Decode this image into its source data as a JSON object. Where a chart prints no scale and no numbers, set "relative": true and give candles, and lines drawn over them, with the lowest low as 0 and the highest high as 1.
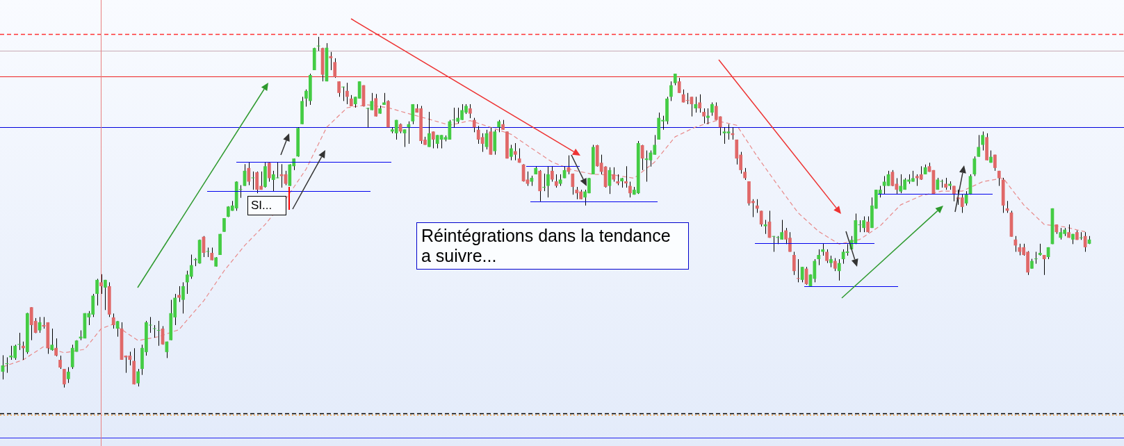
{
  "chart_data": {
    "type": "candlestick",
    "relative": true,
    "categories": [
      null,
      null,
      null,
      null,
      null,
      null,
      null,
      null,
      null,
      null,
      null,
      null,
      null,
      null,
      null,
      null,
      null,
      null,
      null,
      null,
      null,
      null,
      null,
      null,
      null,
      null,
      null,
      null,
      null,
      null,
      null,
      null,
      null,
      null,
      null,
      null,
      null,
      null,
      null,
      null,
      null,
      null,
      null,
      null,
      null,
      null,
      null,
      null,
      null,
      null,
      null,
      null,
      null,
      null,
      null,
      null,
      null,
      null,
      null,
      null,
      null,
      null,
      null,
      null,
      null,
      null,
      null,
      null,
      null,
      null,
      null,
      null,
      null,
      null,
      null,
      null,
      null,
      null,
      null,
      null,
      null,
      null,
      null,
      null,
      null,
      null,
      null,
      null,
      null,
      null,
      null,
      null,
      null,
      null,
      null,
      null,
      null,
      null,
      null,
      null,
      null,
      null,
      null,
      null,
      null,
      null,
      null,
      null,
      null,
      null,
      null,
      null,
      null,
      null,
      null,
      null,
      null,
      null,
      null,
      null,
      null,
      null,
      null,
      null,
      null,
      null,
      null,
      null,
      null,
      null,
      null,
      null,
      null,
      null,
      null,
      null,
      null,
      null,
      null,
      null,
      null,
      null,
      null,
      null,
      null,
      null,
      null,
      null,
      null,
      null,
      null,
      null,
      null,
      null,
      null,
      null,
      null,
      null,
      null,
      null,
      null,
      null,
      null,
      null,
      null,
      null,
      null,
      null,
      null,
      null,
      null,
      null,
      null,
      null,
      null,
      null,
      null,
      null,
      null,
      null,
      null,
      null,
      null,
      null,
      null,
      null,
      null,
      null,
      null,
      null,
      null,
      null,
      null,
      null,
      null,
      null,
      null,
      null,
      null,
      null,
      null,
      null,
      null,
      null,
      null,
      null,
      null,
      null,
      null,
      null,
      null,
      null,
      null,
      null,
      null,
      null,
      null,
      null,
      null,
      null,
      null,
      null,
      null,
      null,
      null,
      null,
      null,
      null,
      null,
      null,
      null,
      null,
      null,
      null,
      null,
      null,
      null,
      null,
      null,
      null,
      null,
      null,
      null,
      null,
      null,
      null,
      null,
      null,
      null,
      null,
      null,
      null,
      null,
      null,
      null,
      null,
      null,
      null,
      null,
      null,
      null,
      null,
      null,
      null,
      null,
      null
    ],
    "ohlc": [
      [
        0.045,
        0.092,
        0.023,
        0.063
      ],
      [
        0.067,
        0.086,
        0.042,
        0.068
      ],
      [
        0.086,
        0.119,
        0.079,
        0.091
      ],
      [
        0.084,
        0.122,
        0.079,
        0.119
      ],
      [
        0.122,
        0.156,
        0.107,
        0.123
      ],
      [
        0.119,
        0.131,
        0.079,
        0.112
      ],
      [
        0.101,
        0.213,
        0.096,
        0.212
      ],
      [
        0.229,
        0.229,
        0.135,
        0.178
      ],
      [
        0.19,
        0.198,
        0.155,
        0.156
      ],
      [
        0.163,
        0.201,
        0.156,
        0.186
      ],
      [
        0.178,
        0.201,
        0.168,
        0.174
      ],
      [
        0.186,
        0.186,
        0.096,
        0.112
      ],
      [
        0.107,
        0.168,
        0.105,
        0.122
      ],
      [
        0.113,
        0.14,
        0.089,
        0.091
      ],
      [
        0.079,
        0.091,
        0.053,
        0.057
      ],
      [
        0.053,
        0.053,
        0,
        0.009
      ],
      [
        0.024,
        0.058,
        0.013,
        0.045
      ],
      [
        0.058,
        0.122,
        0.053,
        0.113
      ],
      [
        0.102,
        0.135,
        0.102,
        0.134
      ],
      [
        0.14,
        0.163,
        0.135,
        0.145
      ],
      [
        0.14,
        0.212,
        0.14,
        0.212
      ],
      [
        0.2,
        0.218,
        0.178,
        0.212
      ],
      [
        0.208,
        0.267,
        0.201,
        0.262
      ],
      [
        0.267,
        0.31,
        0.234,
        0.307
      ],
      [
        0.3,
        0.323,
        0.267,
        0.289
      ],
      [
        0.285,
        0.307,
        0.221,
        0.307
      ],
      [
        0.289,
        0.3,
        0.201,
        0.208
      ],
      [
        0.2,
        0.211,
        0.168,
        0.178
      ],
      [
        0.168,
        0.19,
        0.145,
        0.189
      ],
      [
        0.168,
        0.186,
        0.079,
        0.079
      ],
      [
        0.091,
        0.091,
        0.042,
        0.086
      ],
      [
        0.091,
        0.102,
        0.063,
        0.079
      ],
      [
        0.076,
        0.112,
        0.009,
        0.009
      ],
      [
        0.012,
        0.053,
        0.003,
        0.046
      ],
      [
        0.053,
        0.122,
        0.036,
        0.113
      ],
      [
        0.101,
        0.19,
        0.091,
        0.186
      ],
      [
        0.177,
        0.201,
        0.156,
        0.179
      ],
      [
        0.167,
        0.178,
        0.142,
        0.168
      ],
      [
        0.162,
        0.19,
        0.119,
        0.163
      ],
      [
        0.168,
        0.175,
        0.122,
        0.123
      ],
      [
        0.101,
        0.131,
        0.084,
        0.131
      ],
      [
        0.135,
        0.25,
        0.135,
        0.212
      ],
      [
        0.2,
        0.267,
        0.178,
        0.256
      ],
      [
        0.264,
        0.289,
        0.244,
        0.256
      ],
      [
        0.25,
        0.3,
        0.211,
        0.289
      ],
      [
        0.3,
        0.333,
        0.267,
        0.322
      ],
      [
        0.316,
        0.379,
        0.31,
        0.349
      ],
      [
        0.363,
        0.369,
        0.346,
        0.366
      ],
      [
        0.354,
        0.422,
        0.353,
        0.421
      ],
      [
        0.43,
        0.432,
        0.372,
        0.384
      ],
      [
        0.387,
        0.399,
        0.372,
        0.388
      ],
      [
        0.384,
        0.399,
        0.363,
        0.363
      ],
      [
        0.345,
        0.372,
        0.345,
        0.371
      ],
      [
        0.378,
        0.438,
        0.378,
        0.438
      ],
      [
        0.444,
        0.483,
        0.444,
        0.483
      ],
      [
        0.487,
        0.517,
        0.486,
        0.516
      ],
      [
        0.504,
        0.532,
        0.504,
        0.519
      ],
      [
        0.511,
        0.588,
        0.504,
        0.587
      ],
      [
        0.564,
        0.577,
        0.541,
        0.566
      ],
      [
        0.575,
        0.637,
        0.575,
        0.618
      ],
      [
        0.626,
        0.643,
        0.577,
        0.587
      ],
      [
        0.597,
        0.616,
        0.564,
        0.598
      ],
      [
        0.614,
        0.616,
        0.554,
        0.564
      ],
      [
        0.575,
        0.616,
        0.564,
        0.564
      ],
      [
        0.572,
        0.643,
        0.57,
        0.631
      ],
      [
        0.641,
        0.643,
        0.587,
        0.597
      ],
      [
        0.592,
        0.618,
        0.56,
        0.608
      ],
      [
        0.597,
        0.643,
        0.597,
        0.598
      ],
      [
        0.608,
        0.637,
        0.57,
        0.603
      ],
      [
        0.608,
        0.618,
        0.577,
        0.581
      ],
      [
        0.575,
        0.637,
        0.575,
        0.636
      ],
      [
        0.631,
        0.653,
        0.62,
        0.653
      ],
      [
        0.659,
        0.742,
        0.658,
        0.74
      ],
      [
        0.751,
        0.829,
        0.751,
        0.817
      ],
      [
        0.824,
        0.85,
        0.801,
        0.846
      ],
      [
        0.817,
        0.895,
        0.806,
        0.891
      ],
      [
        0.905,
        0.969,
        0.905,
        0.968
      ],
      [
        0.973,
        1,
        0.96,
        0.974
      ],
      [
        0.968,
        0.969,
        0.873,
        0.892
      ],
      [
        0.873,
        0.982,
        0.873,
        0.969
      ],
      [
        0.945,
        0.957,
        0.905,
        0.939
      ],
      [
        0.928,
        0.939,
        0.883,
        0.885
      ],
      [
        0.873,
        0.873,
        0.829,
        0.84
      ],
      [
        0.856,
        0.858,
        0.817,
        0.857
      ],
      [
        0.846,
        0.869,
        0.808,
        0.829
      ],
      [
        0.824,
        0.834,
        0.802,
        0.802
      ],
      [
        0.808,
        0.829,
        0.798,
        0.829
      ],
      [
        0.824,
        0.873,
        0.824,
        0.873
      ],
      [
        0.862,
        0.862,
        0.801,
        0.802
      ],
      [
        0.795,
        0.798,
        0.742,
        0.796
      ],
      [
        0.791,
        0.84,
        0.791,
        0.817
      ],
      [
        0.825,
        0.837,
        0.773,
        0.773
      ],
      [
        0.781,
        0.804,
        0.781,
        0.796
      ],
      [
        0.806,
        0.84,
        0.806,
        0.813
      ],
      [
        0.817,
        0.819,
        0.742,
        0.742
      ],
      [
        0.73,
        0.742,
        0.725,
        0.736
      ],
      [
        0.725,
        0.763,
        0.707,
        0.763
      ],
      [
        0.751,
        0.753,
        0.725,
        0.73
      ],
      [
        0.725,
        0.736,
        0.686,
        0.736
      ],
      [
        0.742,
        0.759,
        0.695,
        0.751
      ],
      [
        0.759,
        0.808,
        0.751,
        0.808
      ],
      [
        0.796,
        0.808,
        0.784,
        0.784
      ],
      [
        0.796,
        0.803,
        0.695,
        0.703
      ],
      [
        0.707,
        0.715,
        0.692,
        0.692
      ],
      [
        0.686,
        0.786,
        0.686,
        0.725
      ],
      [
        0.73,
        0.73,
        0.682,
        0.707
      ],
      [
        0.695,
        0.72,
        0.682,
        0.72
      ],
      [
        0.707,
        0.72,
        0.682,
        0.72
      ],
      [
        0.707,
        0.719,
        0.702,
        0.714
      ],
      [
        0.707,
        0.763,
        0.707,
        0.759
      ],
      [
        0.762,
        0.798,
        0.742,
        0.763
      ],
      [
        0.758,
        0.798,
        0.753,
        0.769
      ],
      [
        0.763,
        0.808,
        0.763,
        0.791
      ],
      [
        0.784,
        0.808,
        0.78,
        0.803
      ],
      [
        0.796,
        0.808,
        0.768,
        0.781
      ],
      [
        0.763,
        0.769,
        0.728,
        0.742
      ],
      [
        0.735,
        0.746,
        0.695,
        0.707
      ],
      [
        0.714,
        0.725,
        0.672,
        0.695
      ],
      [
        0.686,
        0.735,
        0.679,
        0.725
      ],
      [
        0.73,
        0.742,
        0.664,
        0.664
      ],
      [
        0.674,
        0.735,
        0.664,
        0.73
      ],
      [
        0.742,
        0.763,
        0.728,
        0.759
      ],
      [
        0.751,
        0.763,
        0.735,
        0.735
      ],
      [
        0.73,
        0.73,
        0.653,
        0.653
      ],
      [
        0.658,
        0.692,
        0.648,
        0.682
      ],
      [
        0.674,
        0.697,
        0.648,
        0.664
      ],
      [
        0.653,
        0.682,
        0.641,
        0.641
      ],
      [
        0.636,
        0.637,
        0.587,
        0.588
      ],
      [
        0.593,
        0.616,
        0.575,
        0.581
      ],
      [
        0.587,
        0.604,
        0.575,
        0.598
      ],
      [
        0.608,
        0.631,
        0.608,
        0.626
      ],
      [
        0.618,
        0.62,
        0.531,
        0.56
      ],
      [
        0.57,
        0.61,
        0.56,
        0.572
      ],
      [
        0.575,
        0.63,
        0.542,
        0.608
      ],
      [
        0.618,
        0.63,
        0.587,
        0.593
      ],
      [
        0.588,
        0.608,
        0.57,
        0.575
      ],
      [
        0.581,
        0.608,
        0.575,
        0.593
      ],
      [
        0.597,
        0.631,
        0.597,
        0.62
      ],
      [
        0.628,
        0.662,
        0.608,
        0.615
      ],
      [
        0.61,
        0.61,
        0.55,
        0.572
      ],
      [
        0.564,
        0.572,
        0.537,
        0.554
      ],
      [
        0.559,
        0.564,
        0.537,
        0.537
      ],
      [
        0.542,
        0.564,
        0.519,
        0.559
      ],
      [
        0.554,
        0.598,
        0.554,
        0.597
      ],
      [
        0.608,
        0.692,
        0.608,
        0.686
      ],
      [
        0.691,
        0.692,
        0.63,
        0.631
      ],
      [
        0.641,
        0.664,
        0.608,
        0.615
      ],
      [
        0.63,
        0.631,
        0.57,
        0.572
      ],
      [
        0.575,
        0.628,
        0.552,
        0.62
      ],
      [
        0.608,
        0.628,
        0.587,
        0.593
      ],
      [
        0.588,
        0.608,
        0.577,
        0.582
      ],
      [
        0.588,
        0.598,
        0.57,
        0.597
      ],
      [
        0.588,
        0.631,
        0.57,
        0.582
      ],
      [
        0.575,
        0.587,
        0.542,
        0.554
      ],
      [
        0.55,
        0.572,
        0.55,
        0.564
      ],
      [
        0.554,
        0.703,
        0.552,
        0.697
      ],
      [
        0.691,
        0.692,
        0.62,
        0.653
      ],
      [
        0.649,
        0.676,
        0.587,
        0.653
      ],
      [
        0.648,
        0.676,
        0.63,
        0.67
      ],
      [
        0.664,
        0.72,
        0.664,
        0.692
      ],
      [
        0.707,
        0.784,
        0.707,
        0.769
      ],
      [
        0.759,
        0.775,
        0.735,
        0.763
      ],
      [
        0.759,
        0.829,
        0.751,
        0.824
      ],
      [
        0.829,
        0.873,
        0.817,
        0.862
      ],
      [
        0.868,
        0.895,
        0.862,
        0.895
      ],
      [
        0.873,
        0.883,
        0.84,
        0.84
      ],
      [
        0.836,
        0.85,
        0.813,
        0.813
      ],
      [
        0.819,
        0.84,
        0.808,
        0.818
      ],
      [
        0.829,
        0.829,
        0.773,
        0.808
      ],
      [
        0.796,
        0.829,
        0.784,
        0.808
      ],
      [
        0.813,
        0.836,
        0.784,
        0.796
      ],
      [
        0.786,
        0.796,
        0.753,
        0.773
      ],
      [
        0.769,
        0.796,
        0.751,
        0.775
      ],
      [
        0.784,
        0.813,
        0.775,
        0.808
      ],
      [
        0.803,
        0.813,
        0.763,
        0.763
      ],
      [
        0.773,
        0.773,
        0.719,
        0.742
      ],
      [
        0.725,
        0.742,
        0.695,
        0.73
      ],
      [
        0.725,
        0.751,
        0.707,
        0.73
      ],
      [
        0.725,
        0.742,
        0.707,
        0.72
      ],
      [
        0.707,
        0.707,
        0.636,
        0.653
      ],
      [
        0.664,
        0.672,
        0.61,
        0.62
      ],
      [
        0.615,
        0.626,
        0.592,
        0.597
      ],
      [
        0.588,
        0.588,
        0.519,
        0.525
      ],
      [
        0.532,
        0.537,
        0.486,
        0.526
      ],
      [
        0.519,
        0.537,
        0.498,
        0.51
      ],
      [
        0.504,
        0.504,
        0.459,
        0.465
      ],
      [
        0.46,
        0.478,
        0.438,
        0.465
      ],
      [
        0.473,
        0.504,
        0.427,
        0.427
      ],
      [
        0.43,
        0.432,
        0.387,
        0.432
      ],
      [
        0.427,
        0.432,
        0.409,
        0.428
      ],
      [
        0.422,
        0.478,
        0.422,
        0.443
      ],
      [
        0.448,
        0.455,
        0.409,
        0.422
      ],
      [
        0.427,
        0.443,
        0.387,
        0.387
      ],
      [
        0.378,
        0.387,
        0.321,
        0.332
      ],
      [
        0.311,
        0.366,
        0.3,
        0.31
      ],
      [
        0.307,
        0.344,
        0.3,
        0.344
      ],
      [
        0.339,
        0.344,
        0.293,
        0.295
      ],
      [
        0.289,
        0.323,
        0.289,
        0.322
      ],
      [
        0.31,
        0.366,
        0.3,
        0.361
      ],
      [
        0.366,
        0.394,
        0.349,
        0.378
      ],
      [
        0.387,
        0.41,
        0.376,
        0.394
      ],
      [
        0.387,
        0.394,
        0.355,
        0.361
      ],
      [
        0.355,
        0.376,
        0.343,
        0.366
      ],
      [
        0.361,
        0.369,
        0.332,
        0.339
      ],
      [
        0.332,
        0.366,
        0.305,
        0.355
      ],
      [
        0.366,
        0.394,
        0.353,
        0.387
      ],
      [
        0.384,
        0.409,
        0.376,
        0.388
      ],
      [
        0.394,
        0.432,
        0.392,
        0.421
      ],
      [
        0.41,
        0.496,
        0.409,
        0.477
      ],
      [
        0.463,
        0.477,
        0.443,
        0.465
      ],
      [
        0.455,
        0.488,
        0.443,
        0.477
      ],
      [
        0.473,
        0.488,
        0.442,
        0.443
      ],
      [
        0.455,
        0.542,
        0.455,
        0.519
      ],
      [
        0.51,
        0.564,
        0.51,
        0.564
      ],
      [
        0.552,
        0.575,
        0.542,
        0.564
      ],
      [
        0.575,
        0.603,
        0.552,
        0.587
      ],
      [
        0.575,
        0.618,
        0.575,
        0.608
      ],
      [
        0.615,
        0.62,
        0.574,
        0.575
      ],
      [
        0.581,
        0.597,
        0.552,
        0.564
      ],
      [
        0.559,
        0.608,
        0.554,
        0.575
      ],
      [
        0.564,
        0.597,
        0.564,
        0.593
      ],
      [
        0.587,
        0.608,
        0.581,
        0.593
      ],
      [
        0.587,
        0.618,
        0.587,
        0.597
      ],
      [
        0.603,
        0.608,
        0.575,
        0.597
      ],
      [
        0.608,
        0.631,
        0.592,
        0.593
      ],
      [
        0.608,
        0.636,
        0.608,
        0.628
      ],
      [
        0.631,
        0.641,
        0.615,
        0.615
      ],
      [
        0.62,
        0.62,
        0.552,
        0.552
      ],
      [
        0.564,
        0.598,
        0.564,
        0.593
      ],
      [
        0.587,
        0.593,
        0.57,
        0.588
      ],
      [
        0.581,
        0.598,
        0.564,
        0.57
      ],
      [
        0.575,
        0.588,
        0.564,
        0.581
      ],
      [
        0.575,
        0.575,
        0.531,
        0.552
      ],
      [
        0.542,
        0.564,
        0.521,
        0.537
      ],
      [
        0.542,
        0.552,
        0.498,
        0.515
      ],
      [
        0.525,
        0.56,
        0.519,
        0.55
      ],
      [
        0.552,
        0.608,
        0.55,
        0.603
      ],
      [
        0.608,
        0.659,
        0.603,
        0.653
      ],
      [
        0.658,
        0.72,
        0.658,
        0.686
      ],
      [
        0.692,
        0.73,
        0.676,
        0.72
      ],
      [
        0.714,
        0.725,
        0.648,
        0.648
      ],
      [
        0.641,
        0.676,
        0.641,
        0.658
      ],
      [
        0.664,
        0.664,
        0.618,
        0.626
      ],
      [
        0.618,
        0.618,
        0.575,
        0.597
      ],
      [
        0.593,
        0.598,
        0.498,
        0.519
      ],
      [
        0.511,
        0.532,
        0.498,
        0.504
      ],
      [
        0.499,
        0.504,
        0.43,
        0.43
      ],
      [
        0.422,
        0.432,
        0.387,
        0.405
      ],
      [
        0.4,
        0.41,
        0.377,
        0.387
      ],
      [
        0.4,
        0.41,
        0.376,
        0.378
      ],
      [
        0.387,
        0.389,
        0.321,
        0.328
      ],
      [
        0.339,
        0.367,
        0.339,
        0.361
      ],
      [
        0.366,
        0.387,
        0.353,
        0.367
      ],
      [
        0.378,
        0.41,
        0.376,
        0.384
      ],
      [
        0.378,
        0.378,
        0.321,
        0.366
      ],
      [
        0.372,
        0.4,
        0.366,
        0.4
      ],
      [
        0.409,
        0.511,
        0.409,
        0.511
      ],
      [
        0.465,
        0.465,
        0.438,
        0.443
      ],
      [
        0.427,
        0.455,
        0.422,
        0.443
      ],
      [
        0.438,
        0.455,
        0.432,
        0.45
      ],
      [
        0.443,
        0.465,
        0.427,
        0.427
      ],
      [
        0.422,
        0.438,
        0.409,
        0.438
      ],
      [
        0.443,
        0.448,
        0.421,
        0.421
      ],
      [
        0.426,
        0.443,
        0.421,
        0.427
      ],
      [
        0.432,
        0.443,
        0.387,
        0.4
      ],
      [
        0.41,
        0.432,
        0.409,
        0.422
      ]
    ],
    "colors": [
      "#44cc44",
      "#44cc44",
      "#44cc44",
      "#44cc44",
      "#44cc44",
      "#e06868",
      "#44cc44",
      "#e06868",
      "#e06868",
      "#44cc44",
      "#e06868",
      "#e06868",
      "#44cc44",
      "#e06868",
      "#e06868",
      "#e06868",
      "#44cc44",
      "#44cc44",
      "#44cc44",
      "#44cc44",
      "#44cc44",
      "#44cc44",
      "#44cc44",
      "#44cc44",
      "#e06868",
      "#44cc44",
      "#e06868",
      "#e06868",
      "#44cc44",
      "#e06868",
      "#e06868",
      "#e06868",
      "#e06868",
      "#44cc44",
      "#44cc44",
      "#44cc44",
      "#44cc44",
      "#44cc44",
      "#44cc44",
      "#e06868",
      "#44cc44",
      "#44cc44",
      "#44cc44",
      "#e06868",
      "#44cc44",
      "#44cc44",
      "#44cc44",
      "#44cc44",
      "#44cc44",
      "#e06868",
      "#44cc44",
      "#e06868",
      "#44cc44",
      "#44cc44",
      "#44cc44",
      "#44cc44",
      "#44cc44",
      "#44cc44",
      "#44cc44",
      "#44cc44",
      "#e06868",
      "#44cc44",
      "#e06868",
      "#e06868",
      "#44cc44",
      "#e06868",
      "#44cc44",
      "#44cc44",
      "#e06868",
      "#e06868",
      "#44cc44",
      "#44cc44",
      "#44cc44",
      "#44cc44",
      "#44cc44",
      "#44cc44",
      "#44cc44",
      "#44cc44",
      "#e06868",
      "#44cc44",
      "#e06868",
      "#e06868",
      "#e06868",
      "#44cc44",
      "#e06868",
      "#e06868",
      "#44cc44",
      "#44cc44",
      "#e06868",
      "#44cc44",
      "#44cc44",
      "#e06868",
      "#44cc44",
      "#44cc44",
      "#e06868",
      "#44cc44",
      "#44cc44",
      "#e06868",
      "#44cc44",
      "#44cc44",
      "#44cc44",
      "#e06868",
      "#e06868",
      "#e06868",
      "#44cc44",
      "#e06868",
      "#44cc44",
      "#44cc44",
      "#44cc44",
      "#44cc44",
      "#44cc44",
      "#44cc44",
      "#44cc44",
      "#44cc44",
      "#e06868",
      "#e06868",
      "#e06868",
      "#e06868",
      "#44cc44",
      "#e06868",
      "#44cc44",
      "#44cc44",
      "#e06868",
      "#e06868",
      "#44cc44",
      "#e06868",
      "#e06868",
      "#e06868",
      "#e06868",
      "#44cc44",
      "#44cc44",
      "#e06868",
      "#44cc44",
      "#44cc44",
      "#e06868",
      "#e06868",
      "#44cc44",
      "#44cc44",
      "#e06868",
      "#e06868",
      "#e06868",
      "#e06868",
      "#44cc44",
      "#44cc44",
      "#44cc44",
      "#e06868",
      "#e06868",
      "#e06868",
      "#44cc44",
      "#e06868",
      "#e06868",
      "#44cc44",
      "#e06868",
      "#e06868",
      "#44cc44",
      "#44cc44",
      "#e06868",
      "#44cc44",
      "#44cc44",
      "#44cc44",
      "#44cc44",
      "#44cc44",
      "#44cc44",
      "#44cc44",
      "#44cc44",
      "#e06868",
      "#e06868",
      "#e06868",
      "#e06868",
      "#44cc44",
      "#e06868",
      "#e06868",
      "#44cc44",
      "#44cc44",
      "#e06868",
      "#e06868",
      "#44cc44",
      "#44cc44",
      "#e06868",
      "#e06868",
      "#e06868",
      "#e06868",
      "#e06868",
      "#e06868",
      "#e06868",
      "#e06868",
      "#44cc44",
      "#e06868",
      "#44cc44",
      "#44cc44",
      "#44cc44",
      "#e06868",
      "#e06868",
      "#e06868",
      "#e06868",
      "#44cc44",
      "#e06868",
      "#44cc44",
      "#44cc44",
      "#44cc44",
      "#44cc44",
      "#e06868",
      "#44cc44",
      "#e06868",
      "#44cc44",
      "#44cc44",
      "#44cc44",
      "#44cc44",
      "#44cc44",
      "#44cc44",
      "#44cc44",
      "#e06868",
      "#44cc44",
      "#44cc44",
      "#44cc44",
      "#44cc44",
      "#44cc44",
      "#e06868",
      "#e06868",
      "#44cc44",
      "#44cc44",
      "#44cc44",
      "#44cc44",
      "#e06868",
      "#e06868",
      "#44cc44",
      "#e06868",
      "#e06868",
      "#44cc44",
      "#44cc44",
      "#e06868",
      "#44cc44",
      "#e06868",
      "#e06868",
      "#e06868",
      "#44cc44",
      "#44cc44",
      "#44cc44",
      "#44cc44",
      "#44cc44",
      "#e06868",
      "#44cc44",
      "#e06868",
      "#e06868",
      "#e06868",
      "#e06868",
      "#e06868",
      "#e06868",
      "#e06868",
      "#e06868",
      "#e06868",
      "#44cc44",
      "#44cc44",
      "#44cc44",
      "#e06868",
      "#44cc44",
      "#44cc44",
      "#e06868",
      "#44cc44",
      "#44cc44",
      "#e06868",
      "#44cc44",
      "#e06868",
      "#44cc44",
      "#e06868",
      "#44cc44"
    ],
    "series": [
      {
        "type": "line",
        "color": "#e88a8a",
        "line_style": "dashed",
        "values": [
          0.059,
          null,
          null,
          null,
          null,
          0.079,
          null,
          null,
          null,
          null,
          0.117,
          null,
          null,
          null,
          null,
          0.099,
          null,
          null,
          null,
          null,
          0.109,
          null,
          null,
          null,
          0.168,
          null,
          null,
          0.181,
          null,
          null,
          null,
          null,
          null,
          0.134,
          null,
          null,
          null,
          null,
          0.145,
          null,
          null,
          null,
          null,
          0.165,
          null,
          0.193,
          null,
          null,
          null,
          0.247,
          null,
          null,
          null,
          null,
          0.333,
          null,
          null,
          null,
          null,
          0.405,
          null,
          null,
          null,
          null,
          0.465,
          null,
          null,
          null,
          null,
          0.537,
          null,
          null,
          null,
          null,
          0.623,
          null,
          null,
          null,
          null,
          0.742,
          null,
          null,
          null,
          null,
          0.798,
          null,
          null,
          null,
          null,
          0.806,
          null,
          null,
          null,
          null,
          0.798,
          null,
          null,
          null,
          null,
          0.781,
          null,
          null,
          null,
          null,
          0.765,
          null,
          null,
          null,
          null,
          0.748,
          null,
          null,
          null,
          null,
          0.761,
          null,
          null,
          null,
          null,
          0.742,
          null,
          null,
          null,
          null,
          0.722,
          null,
          null,
          null,
          null,
          0.682,
          null,
          null,
          null,
          null,
          0.643,
          null,
          null,
          null,
          null,
          0.62,
          null,
          null,
          null,
          null,
          0.608,
          null,
          null,
          null,
          null,
          0.606,
          null,
          null,
          null,
          null,
          0.597,
          null,
          null,
          null,
          null,
          0.643,
          null,
          null,
          null,
          null,
          0.715,
          null,
          null,
          null,
          null,
          0.743,
          null,
          null,
          null,
          null,
          0.761,
          null,
          null,
          null,
          null,
          0.748,
          null,
          null,
          null,
          null,
          0.659,
          null,
          null,
          null,
          null,
          0.577,
          null,
          null,
          null,
          null,
          0.498,
          null,
          null,
          null,
          null,
          0.445,
          null,
          null,
          null,
          null,
          0.409,
          null,
          null,
          null,
          null,
          0.422,
          null,
          null,
          null,
          null,
          0.461,
          null,
          null,
          null,
          null,
          0.521,
          null,
          null,
          null,
          null,
          0.547,
          null,
          null,
          null,
          null,
          0.56,
          null,
          null,
          null,
          null,
          0.56,
          null,
          null,
          null,
          null,
          0.587,
          null,
          null,
          null,
          null,
          0.597,
          null,
          null,
          null,
          null,
          0.521,
          null,
          null,
          null,
          null,
          0.465,
          null,
          null,
          null,
          null,
          0.458,
          null,
          null,
          null,
          null,
          0.444,
          null
        ]
      }
    ],
    "ref_lines": [
      {
        "axis": "y",
        "value": 1.008,
        "color": "#ff3333",
        "line_style": "dashed"
      },
      {
        "axis": "y",
        "value": 0.96,
        "color": "#c8aab4",
        "line_style": "solid"
      },
      {
        "axis": "y",
        "value": 0.887,
        "color": "#ee2222",
        "line_style": "solid"
      },
      {
        "axis": "y",
        "value": 0.743,
        "color": "#0000dd",
        "line_style": "solid"
      },
      {
        "axis": "y",
        "value": -0.073,
        "color": "#000000",
        "line_style": "dashed"
      },
      {
        "axis": "y",
        "value": -0.077,
        "color": "#ff8800",
        "line_style": "dotted"
      },
      {
        "axis": "y",
        "value": -0.143,
        "color": "#2222ee",
        "line_style": "solid"
      }
    ],
    "annotations": [
      "SI...",
      "Réintégrations dans la tendance a suivre..."
    ]
  }
}
